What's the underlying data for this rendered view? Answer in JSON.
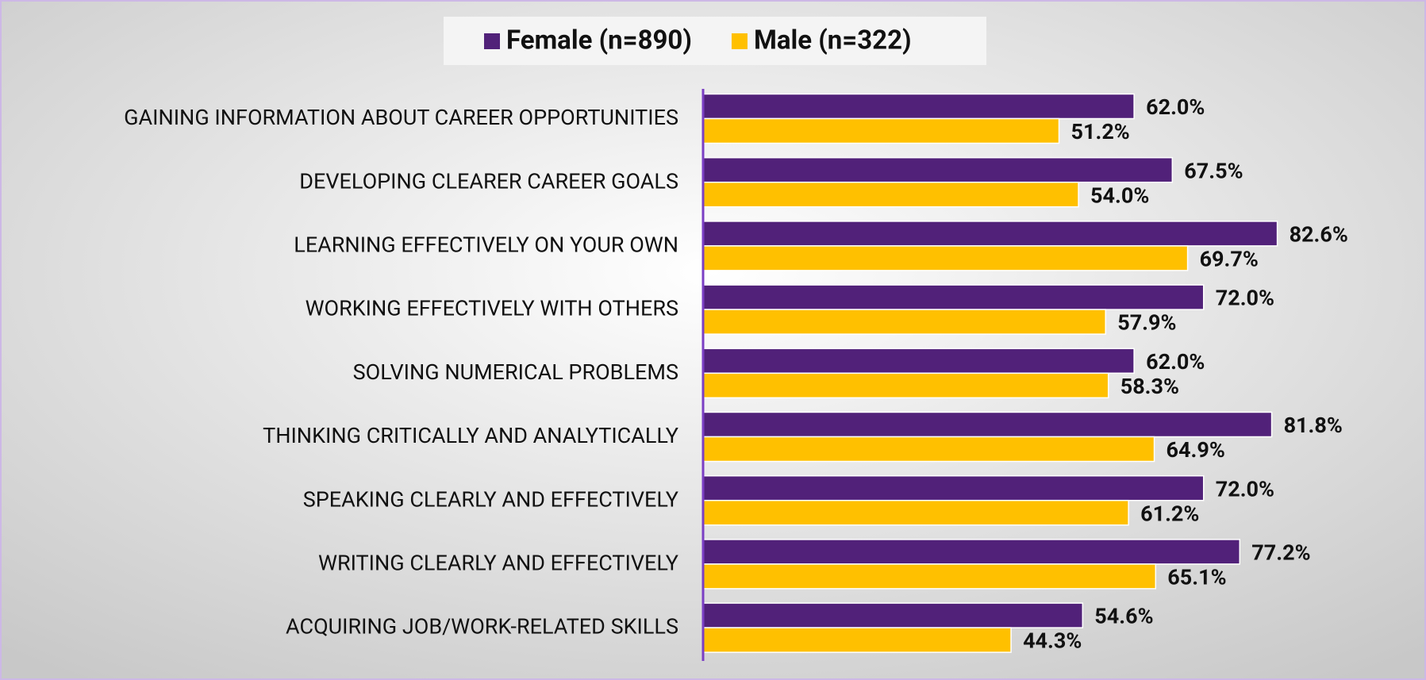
{
  "chart_data": {
    "type": "bar",
    "orientation": "horizontal",
    "categories": [
      "GAINING INFORMATION ABOUT CAREER OPPORTUNITIES",
      "DEVELOPING CLEARER CAREER GOALS",
      "LEARNING EFFECTIVELY ON YOUR OWN",
      "WORKING EFFECTIVELY WITH OTHERS",
      "SOLVING NUMERICAL PROBLEMS",
      "THINKING CRITICALLY AND ANALYTICALLY",
      "SPEAKING CLEARLY AND EFFECTIVELY",
      "WRITING CLEARLY AND EFFECTIVELY",
      "ACQUIRING JOB/WORK-RELATED SKILLS"
    ],
    "series": [
      {
        "name": "Female (n=890)",
        "color": "#512179",
        "values": [
          62.0,
          67.5,
          82.6,
          72.0,
          62.0,
          81.8,
          72.0,
          77.2,
          54.6
        ],
        "value_labels": [
          "62.0%",
          "67.5%",
          "82.6%",
          "72.0%",
          "62.0%",
          "81.8%",
          "72.0%",
          "77.2%",
          "54.6%"
        ]
      },
      {
        "name": "Male (n=322)",
        "color": "#ffc000",
        "values": [
          51.2,
          54.0,
          69.7,
          57.9,
          58.3,
          64.9,
          61.2,
          65.1,
          44.3
        ],
        "value_labels": [
          "51.2%",
          "54.0%",
          "69.7%",
          "57.9%",
          "58.3%",
          "64.9%",
          "61.2%",
          "65.1%",
          "44.3%"
        ]
      }
    ],
    "xlim": [
      0,
      100
    ],
    "legend": "top"
  }
}
